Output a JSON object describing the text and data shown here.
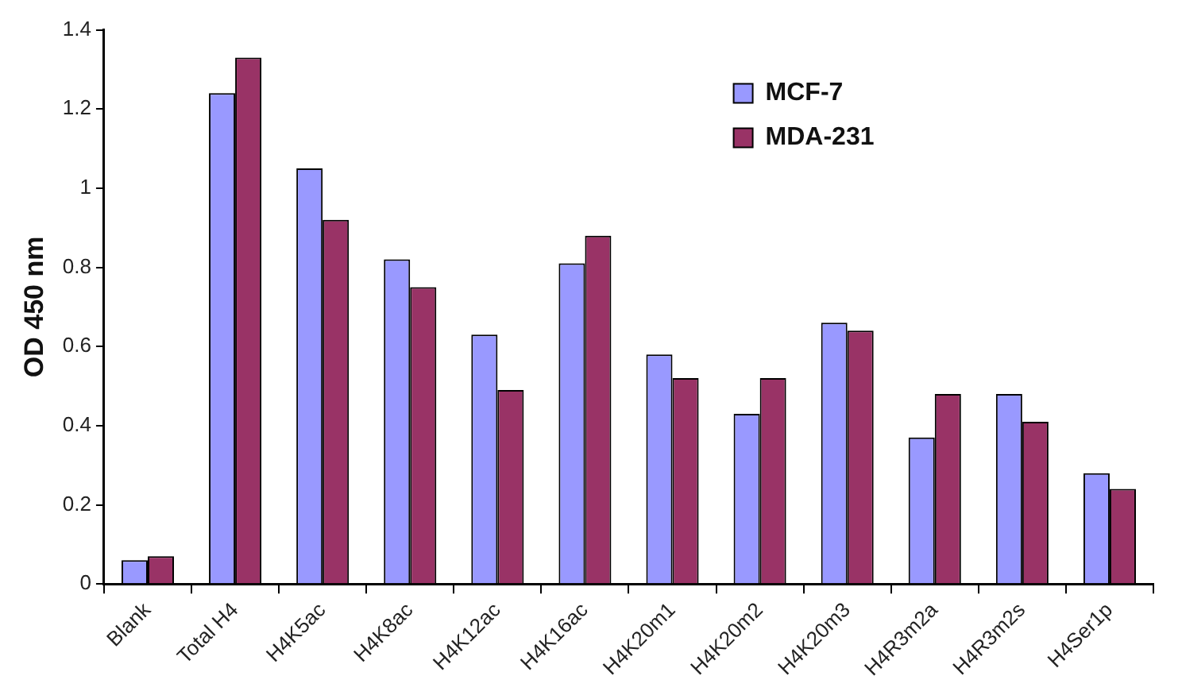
{
  "chart_data": {
    "type": "bar",
    "ylabel": "OD 450 nm",
    "categories": [
      "Blank",
      "Total H4",
      "H4K5ac",
      "H4K8ac",
      "H4K12ac",
      "H4K16ac",
      "H4K20m1",
      "H4K20m2",
      "H4K20m3",
      "H4R3m2a",
      "H4R3m2s",
      "H4Ser1p"
    ],
    "series": [
      {
        "name": "MCF-7",
        "color": "#9999ff",
        "values": [
          0.06,
          1.24,
          1.05,
          0.82,
          0.63,
          0.81,
          0.58,
          0.43,
          0.66,
          0.37,
          0.48,
          0.28
        ]
      },
      {
        "name": "MDA-231",
        "color": "#993366",
        "values": [
          0.07,
          1.33,
          0.92,
          0.75,
          0.49,
          0.88,
          0.52,
          0.52,
          0.64,
          0.48,
          0.41,
          0.24
        ]
      }
    ],
    "ylim": [
      0,
      1.4
    ],
    "yticks": [
      0,
      0.2,
      0.4,
      0.6,
      0.8,
      1,
      1.2,
      1.4
    ],
    "grid": false,
    "legend": "top right"
  }
}
